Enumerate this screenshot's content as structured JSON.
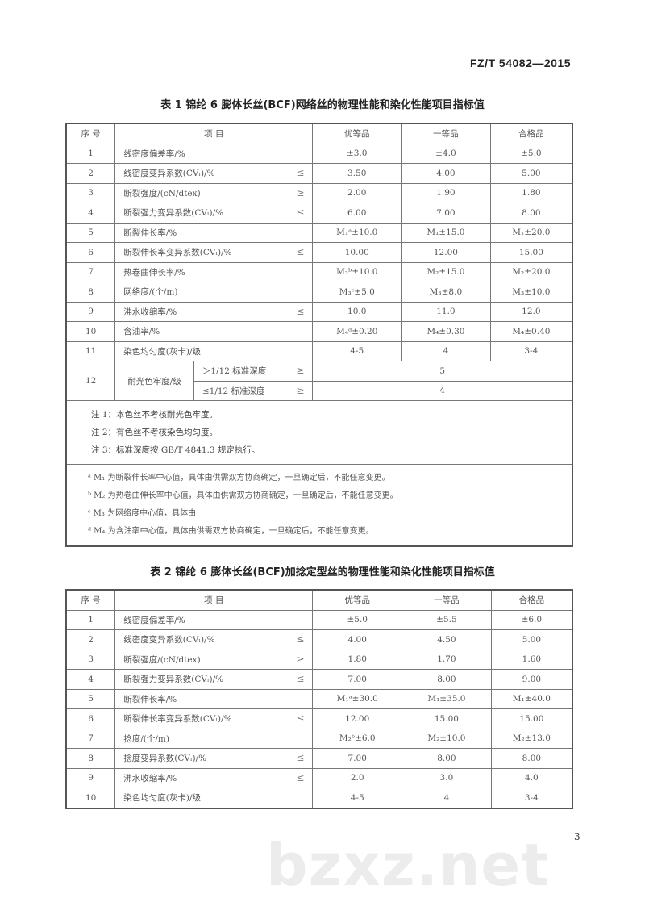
{
  "standard_number": "FZ/T 54082—2015",
  "page_number": "3",
  "watermark": "bzxz.net",
  "table1": {
    "title": "表 1   锦纶 6 膨体长丝(BCF)网络丝的物理性能和染化性能项目指标值",
    "headers": [
      "序  号",
      "项    目",
      "优等品",
      "一等品",
      "合格品"
    ],
    "rows": [
      {
        "no": "1",
        "item": "线密度偏差率/%",
        "cmp": "",
        "v": [
          "±3.0",
          "±4.0",
          "±5.0"
        ]
      },
      {
        "no": "2",
        "item": "线密度变异系数(CVₗ)/%",
        "cmp": "≤",
        "v": [
          "3.50",
          "4.00",
          "5.00"
        ]
      },
      {
        "no": "3",
        "item": "断裂强度/(cN/dtex)",
        "cmp": "≥",
        "v": [
          "2.00",
          "1.90",
          "1.80"
        ]
      },
      {
        "no": "4",
        "item": "断裂强力变异系数(CVₗ)/%",
        "cmp": "≤",
        "v": [
          "6.00",
          "7.00",
          "8.00"
        ]
      },
      {
        "no": "5",
        "item": "断裂伸长率/%",
        "cmp": "",
        "v": [
          "M₁ᵃ±10.0",
          "M₁±15.0",
          "M₁±20.0"
        ]
      },
      {
        "no": "6",
        "item": "断裂伸长率变异系数(CVₗ)/%",
        "cmp": "≤",
        "v": [
          "10.00",
          "12.00",
          "15.00"
        ]
      },
      {
        "no": "7",
        "item": "热卷曲伸长率/%",
        "cmp": "",
        "v": [
          "M₂ᵇ±10.0",
          "M₂±15.0",
          "M₂±20.0"
        ]
      },
      {
        "no": "8",
        "item": "网络度/(个/m)",
        "cmp": "",
        "v": [
          "M₃ᶜ±5.0",
          "M₃±8.0",
          "M₃±10.0"
        ]
      },
      {
        "no": "9",
        "item": "沸水收缩率/%",
        "cmp": "≤",
        "v": [
          "10.0",
          "11.0",
          "12.0"
        ]
      },
      {
        "no": "10",
        "item": "含油率/%",
        "cmp": "",
        "v": [
          "M₄ᵈ±0.20",
          "M₄±0.30",
          "M₄±0.40"
        ]
      },
      {
        "no": "11",
        "item": "染色均匀度(灰卡)/级",
        "cmp": "",
        "v": [
          "4-5",
          "4",
          "3-4"
        ]
      }
    ],
    "row12": {
      "no": "12",
      "item": "耐光色牢度/级",
      "sub": [
        {
          "label": "＞1/12 标准深度",
          "cmp": "≥",
          "value": "5"
        },
        {
          "label": "≤1/12 标准深度",
          "cmp": "≥",
          "value": "4"
        }
      ]
    },
    "notes": [
      "注 1：本色丝不考核耐光色牢度。",
      "注 2：有色丝不考核染色均匀度。",
      "注 3：标准深度按 GB/T 4841.3 规定执行。"
    ],
    "footnotes": [
      "ᵃ M₁ 为断裂伸长率中心值，具体由供需双方协商确定，一旦确定后，不能任意变更。",
      "ᵇ M₂ 为热卷曲伸长率中心值，具体由供需双方协商确定，一旦确定后，不能任意变更。",
      "ᶜ M₃ 为网络度中心值，具体由",
      "ᵈ M₄ 为含油率中心值，具体由供需双方协商确定，一旦确定后，不能任意变更。"
    ]
  },
  "table2": {
    "title": "表 2   锦纶 6 膨体长丝(BCF)加捻定型丝的物理性能和染化性能项目指标值",
    "headers": [
      "序  号",
      "项    目",
      "优等品",
      "一等品",
      "合格品"
    ],
    "rows": [
      {
        "no": "1",
        "item": "线密度偏差率/%",
        "cmp": "",
        "v": [
          "±5.0",
          "±5.5",
          "±6.0"
        ]
      },
      {
        "no": "2",
        "item": "线密度变异系数(CVₗ)/%",
        "cmp": "≤",
        "v": [
          "4.00",
          "4.50",
          "5.00"
        ]
      },
      {
        "no": "3",
        "item": "断裂强度/(cN/dtex)",
        "cmp": "≥",
        "v": [
          "1.80",
          "1.70",
          "1.60"
        ]
      },
      {
        "no": "4",
        "item": "断裂强力变异系数(CVₗ)/%",
        "cmp": "≤",
        "v": [
          "7.00",
          "8.00",
          "9.00"
        ]
      },
      {
        "no": "5",
        "item": "断裂伸长率/%",
        "cmp": "",
        "v": [
          "M₁ᵃ±30.0",
          "M₁±35.0",
          "M₁±40.0"
        ]
      },
      {
        "no": "6",
        "item": "断裂伸长率变异系数(CVₗ)/%",
        "cmp": "≤",
        "v": [
          "12.00",
          "15.00",
          "15.00"
        ]
      },
      {
        "no": "7",
        "item": "捻度/(个/m)",
        "cmp": "",
        "v": [
          "M₂ᵇ±6.0",
          "M₂±10.0",
          "M₂±13.0"
        ]
      },
      {
        "no": "8",
        "item": "捻度变异系数(CVₗ)/%",
        "cmp": "≤",
        "v": [
          "7.00",
          "8.00",
          "8.00"
        ]
      },
      {
        "no": "9",
        "item": "沸水收缩率/%",
        "cmp": "≤",
        "v": [
          "2.0",
          "3.0",
          "4.0"
        ]
      },
      {
        "no": "10",
        "item": "染色均匀度(灰卡)/级",
        "cmp": "",
        "v": [
          "4-5",
          "4",
          "3-4"
        ]
      }
    ]
  }
}
